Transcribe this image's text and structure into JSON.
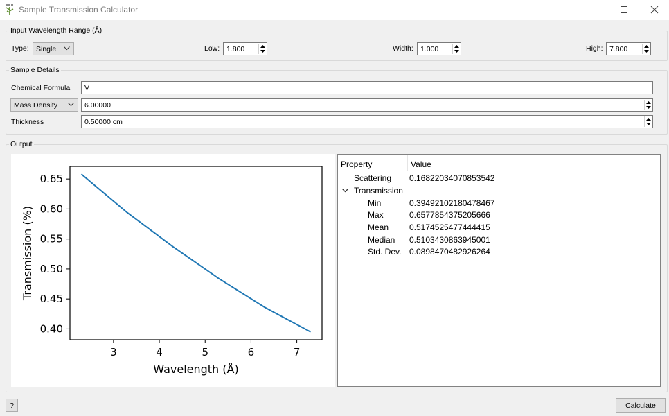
{
  "window": {
    "title": "Sample Transmission Calculator"
  },
  "wavelength_range": {
    "group_title": "Input Wavelength Range (Å)",
    "type_label": "Type:",
    "type_value": "Single",
    "low_label": "Low:",
    "low_value": "1.800",
    "width_label": "Width:",
    "width_value": "1.000",
    "high_label": "High:",
    "high_value": "7.800"
  },
  "sample_details": {
    "group_title": "Sample Details",
    "formula_label": "Chemical Formula",
    "formula_value": "V",
    "density_type": "Mass Density",
    "density_value": "6.00000",
    "thickness_label": "Thickness",
    "thickness_value": "0.50000 cm"
  },
  "output": {
    "group_title": "Output",
    "table": {
      "header_property": "Property",
      "header_value": "Value",
      "scattering": {
        "label": "Scattering",
        "value": "0.16822034070853542"
      },
      "transmission": {
        "label": "Transmission",
        "expanded": true,
        "min": {
          "label": "Min",
          "value": "0.39492102180478467"
        },
        "max": {
          "label": "Max",
          "value": "0.6577854375205666"
        },
        "mean": {
          "label": "Mean",
          "value": "0.5174525477444415"
        },
        "median": {
          "label": "Median",
          "value": "0.5103430863945001"
        },
        "std": {
          "label": "Std. Dev.",
          "value": "0.0898470482926264"
        }
      }
    }
  },
  "buttons": {
    "help": "?",
    "calculate": "Calculate"
  },
  "colors": {
    "line": "#1f77b4",
    "window_bg": "#f0f0f0",
    "group_border": "#d9d9d9"
  },
  "chart_data": {
    "type": "line",
    "xlabel": "Wavelength (Å)",
    "ylabel": "Transmission (%)",
    "xlim": [
      2.05,
      7.55
    ],
    "ylim": [
      0.382,
      0.671
    ],
    "x_ticks": [
      3,
      4,
      5,
      6,
      7
    ],
    "y_ticks": [
      0.4,
      0.45,
      0.5,
      0.55,
      0.6,
      0.65
    ],
    "x_tick_labels": [
      "3",
      "4",
      "5",
      "6",
      "7"
    ],
    "y_tick_labels": [
      "0.40",
      "0.45",
      "0.50",
      "0.55",
      "0.60",
      "0.65"
    ],
    "grid": false,
    "series": [
      {
        "color": "#1f77b4",
        "x": [
          2.3,
          3.3,
          4.3,
          5.3,
          6.3,
          7.3
        ],
        "y": [
          0.658,
          0.594,
          0.537,
          0.484,
          0.436,
          0.395
        ]
      }
    ]
  }
}
